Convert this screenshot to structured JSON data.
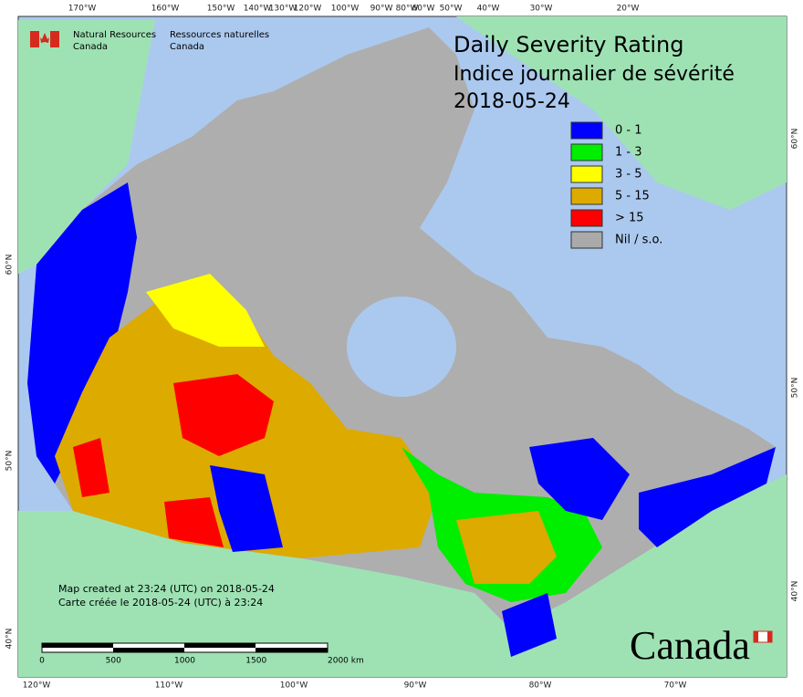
{
  "header": {
    "agency_en": "Natural Resources",
    "agency_en_2": "Canada",
    "agency_fr": "Ressources naturelles",
    "agency_fr_2": "Canada"
  },
  "title": {
    "line1": "Daily Severity Rating",
    "line2": "Indice journalier de sévérité",
    "date": "2018-05-24"
  },
  "legend": {
    "items": [
      {
        "label": "0 - 1",
        "color": "#0000ff"
      },
      {
        "label": "1 - 3",
        "color": "#00ee00"
      },
      {
        "label": "3 - 5",
        "color": "#ffff00"
      },
      {
        "label": "5 - 15",
        "color": "#ddaa00"
      },
      {
        "label": "> 15",
        "color": "#ff0000"
      },
      {
        "label": "Nil / s.o.",
        "color": "#aaaaaa"
      }
    ]
  },
  "graticule": {
    "top": [
      "170°W",
      "160°W",
      "150°W",
      "140°W",
      "130°W",
      "120°W",
      "100°W",
      "90°W",
      "80°W",
      "60°W",
      "50°W",
      "40°W",
      "30°W",
      "20°W"
    ],
    "bottom": [
      "120°W",
      "110°W",
      "100°W",
      "90°W",
      "80°W",
      "70°W"
    ],
    "left": [
      "60°N",
      "50°N",
      "40°N"
    ],
    "right": [
      "60°N",
      "50°N",
      "40°N"
    ]
  },
  "notes": {
    "created_en": "Map created at 23:24 (UTC) on 2018-05-24",
    "created_fr": "Carte créée le 2018-05-24 (UTC) à 23:24"
  },
  "scale": {
    "labels": [
      "0",
      "500",
      "1000",
      "1500",
      "2000 km"
    ]
  },
  "wordmark": "Canada"
}
